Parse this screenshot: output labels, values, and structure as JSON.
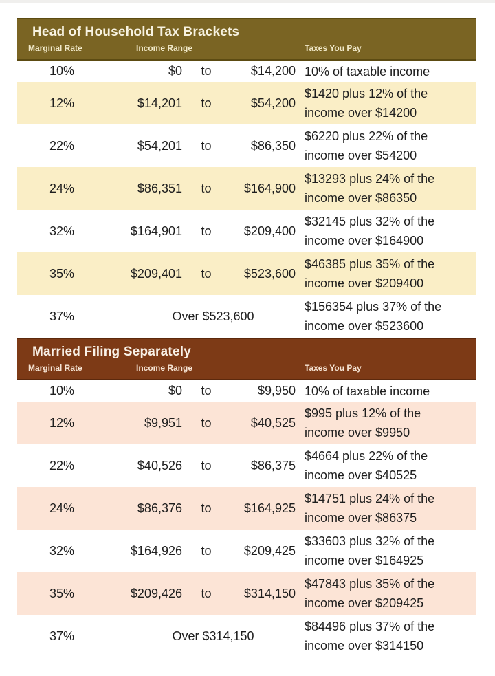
{
  "page": {
    "background": "#ffffff",
    "text_color": "#1e1e1e"
  },
  "tables": [
    {
      "title": "Head of Household Tax Brackets",
      "columns": [
        "Marginal Rate",
        "Income Range",
        "Taxes You Pay"
      ],
      "colors": {
        "header_bg": "#7a6423",
        "header_edge": "#5c4b12",
        "stripe_bg": "#faeec6",
        "title_text": "#f7f2e0",
        "label_text": "#f1e9c9"
      },
      "rows": [
        {
          "rate": "10%",
          "lower": "$0",
          "conj": "to",
          "upper": "$14,200",
          "tax": "10% of taxable income"
        },
        {
          "rate": "12%",
          "lower": "$14,201",
          "conj": "to",
          "upper": "$54,200",
          "tax": "$1420 plus 12% of the income over $14200"
        },
        {
          "rate": "22%",
          "lower": "$54,201",
          "conj": "to",
          "upper": "$86,350",
          "tax": "$6220 plus 22% of the income over $54200"
        },
        {
          "rate": "24%",
          "lower": "$86,351",
          "conj": "to",
          "upper": "$164,900",
          "tax": "$13293 plus 24% of the income over $86350"
        },
        {
          "rate": "32%",
          "lower": "$164,901",
          "conj": "to",
          "upper": "$209,400",
          "tax": "$32145 plus 32% of the income over $164900"
        },
        {
          "rate": "35%",
          "lower": "$209,401",
          "conj": "to",
          "upper": "$523,600",
          "tax": "$46385 plus 35% of the income over $209400"
        },
        {
          "rate": "37%",
          "over": "Over $523,600",
          "tax": "$156354 plus 37% of the income over $523600"
        }
      ]
    },
    {
      "title": "Married Filing Separately",
      "columns": [
        "Marginal Rate",
        "Income Range",
        "Taxes You Pay"
      ],
      "colors": {
        "header_bg": "#7d3a16",
        "header_edge": "#5c290d",
        "stripe_bg": "#fce4d6",
        "title_text": "#f9f1e7",
        "label_text": "#f6e4d4"
      },
      "rows": [
        {
          "rate": "10%",
          "lower": "$0",
          "conj": "to",
          "upper": "$9,950",
          "tax": "10% of taxable income"
        },
        {
          "rate": "12%",
          "lower": "$9,951",
          "conj": "to",
          "upper": "$40,525",
          "tax": "$995 plus 12% of the income over $9950"
        },
        {
          "rate": "22%",
          "lower": "$40,526",
          "conj": "to",
          "upper": "$86,375",
          "tax": "$4664 plus 22% of the income over $40525"
        },
        {
          "rate": "24%",
          "lower": "$86,376",
          "conj": "to",
          "upper": "$164,925",
          "tax": "$14751 plus 24% of the income over $86375"
        },
        {
          "rate": "32%",
          "lower": "$164,926",
          "conj": "to",
          "upper": "$209,425",
          "tax": "$33603 plus 32% of the income over $164925"
        },
        {
          "rate": "35%",
          "lower": "$209,426",
          "conj": "to",
          "upper": "$314,150",
          "tax": "$47843 plus 35% of the income over $209425"
        },
        {
          "rate": "37%",
          "over": "Over $314,150",
          "tax": "$84496 plus 37% of the income over $314150"
        }
      ]
    }
  ]
}
